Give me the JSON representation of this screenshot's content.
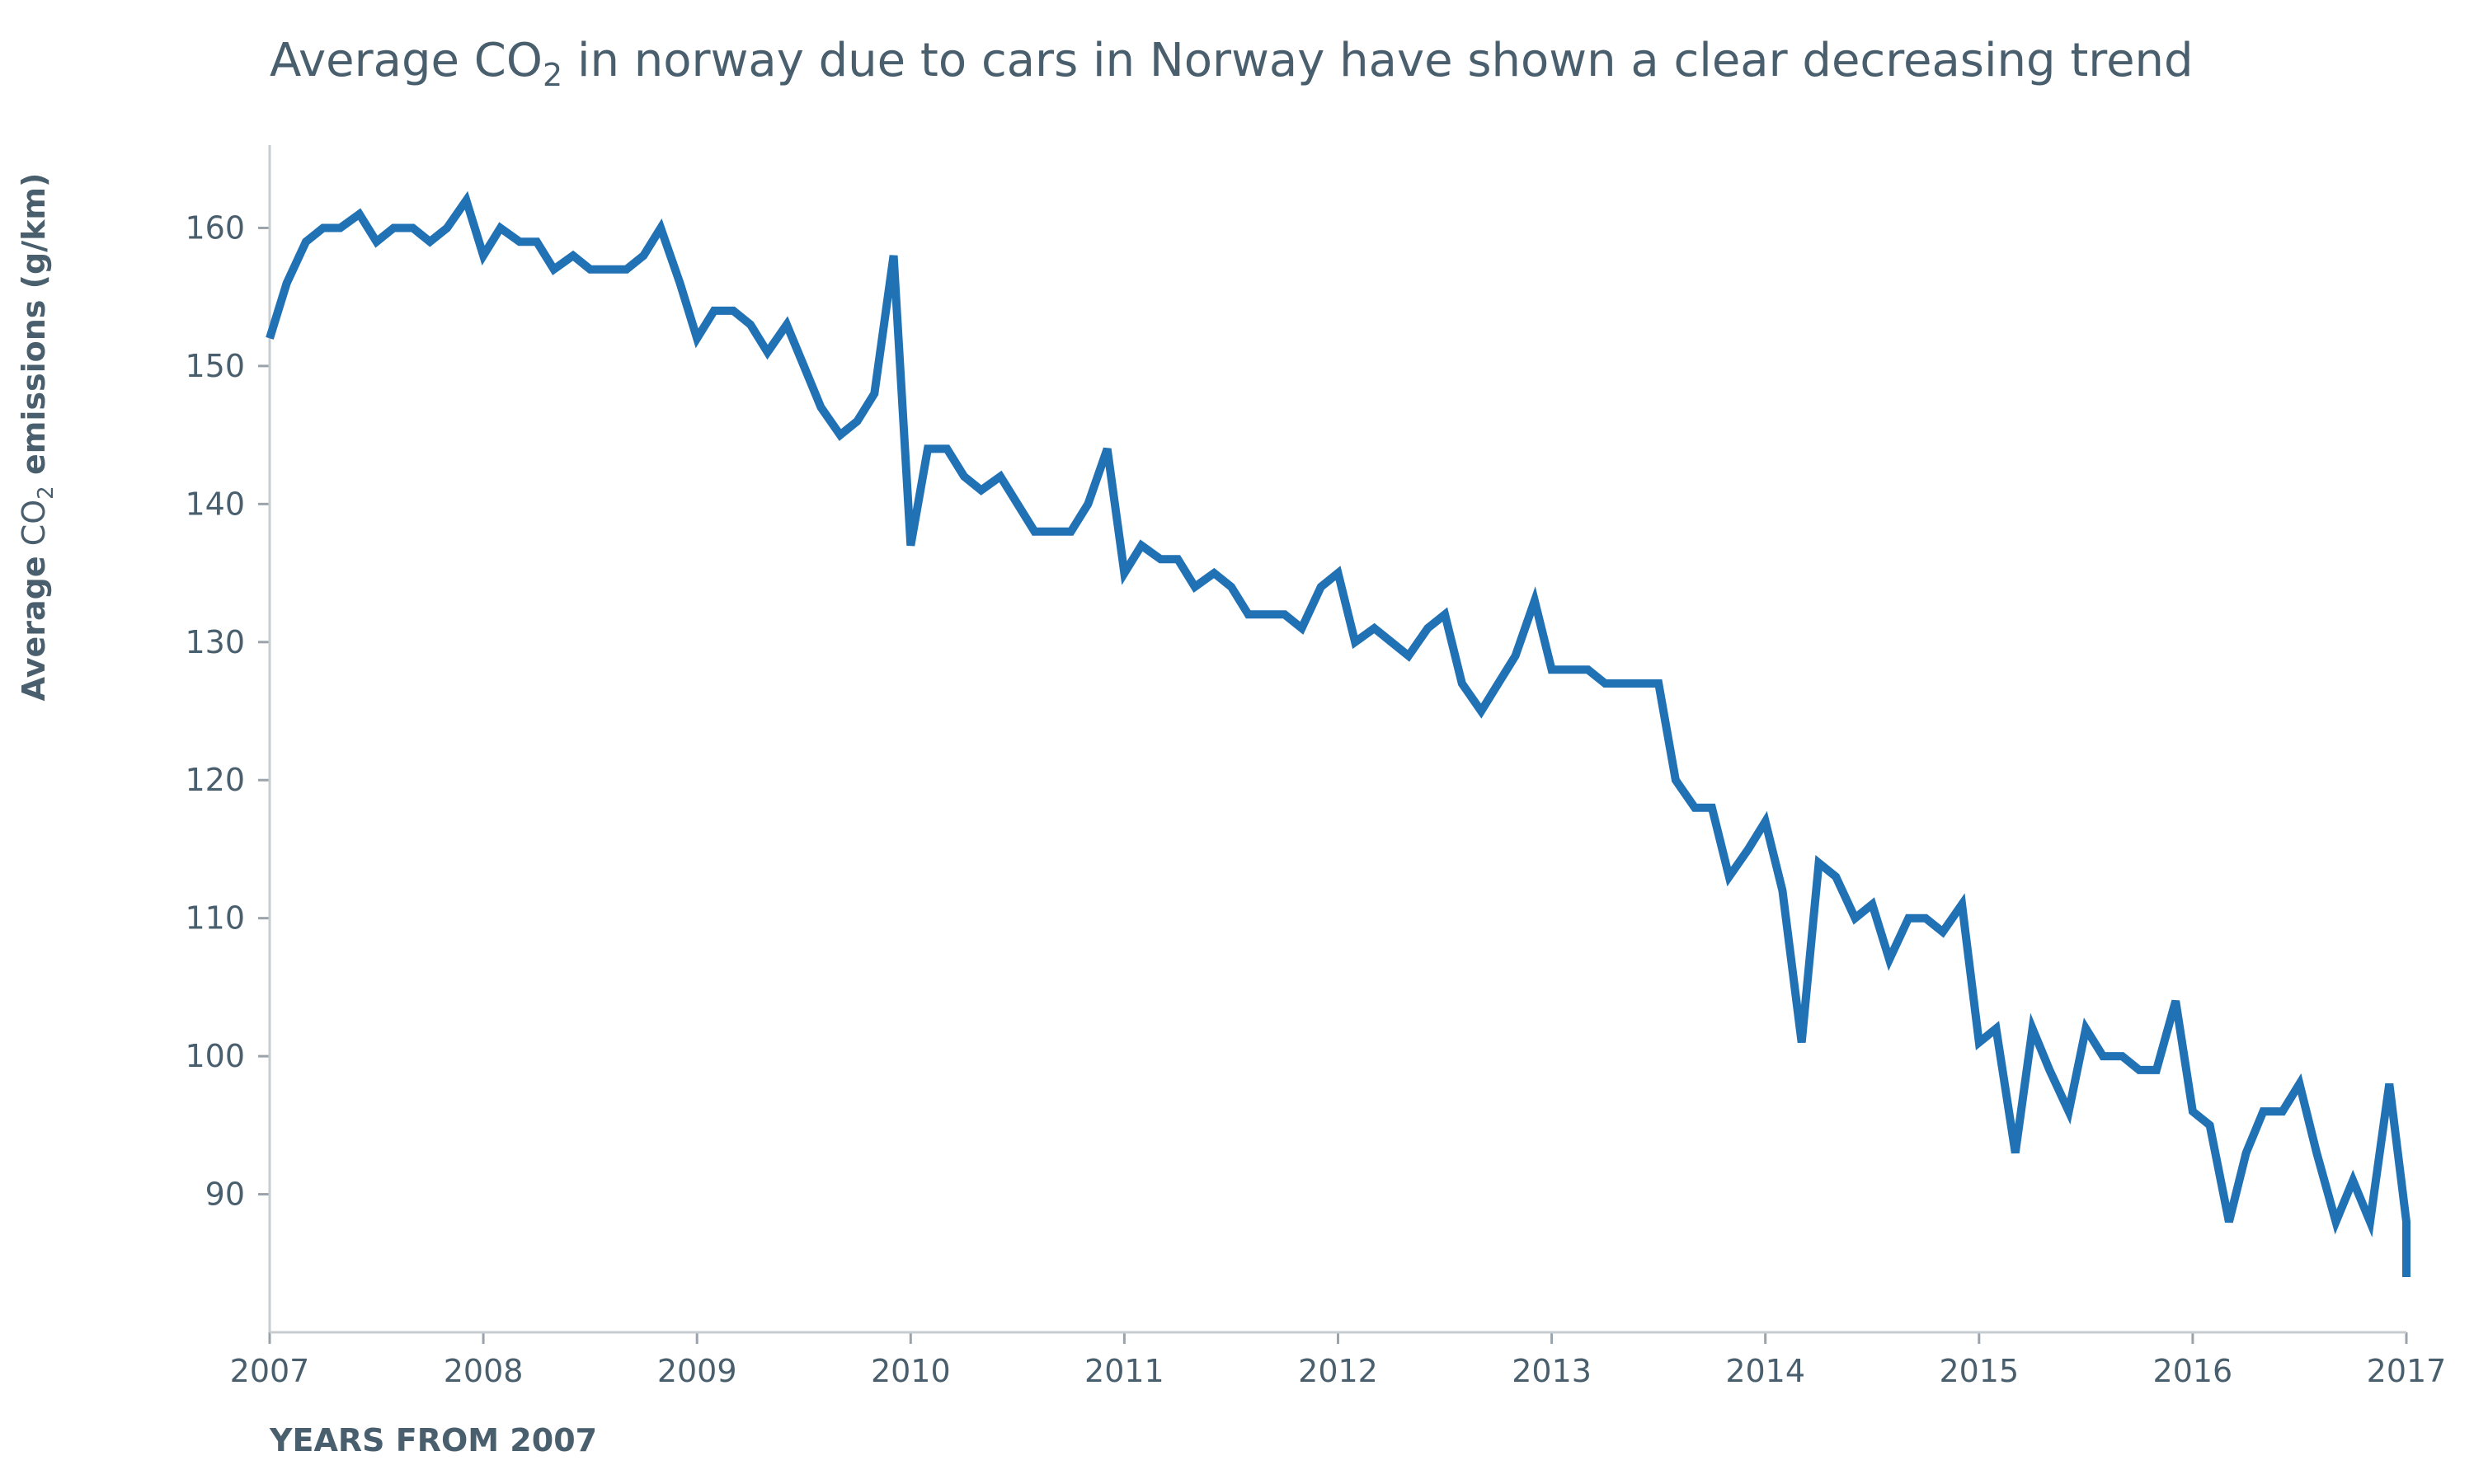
{
  "chart_data": {
    "type": "line",
    "title": {
      "before": "Average CO",
      "sub": "2",
      "after": " in norway due to cars in Norway have shown a clear decreasing trend"
    },
    "xlabel": "YEARS FROM 2007",
    "ylabel": {
      "bold_before": "Average",
      "light": " CO",
      "sub": "2",
      "bold_after": " emissions (g/km)"
    },
    "xlim": [
      2007,
      2017
    ],
    "ylim": [
      80,
      166
    ],
    "x_ticks": [
      2007,
      2008,
      2009,
      2010,
      2011,
      2012,
      2013,
      2014,
      2015,
      2016,
      2017
    ],
    "x_tick_labels": [
      "2007",
      "2008",
      "2009",
      "2010",
      "2011",
      "2012",
      "2013",
      "2014",
      "2015",
      "2016",
      "2017"
    ],
    "y_ticks": [
      90,
      100,
      110,
      120,
      130,
      140,
      150,
      160
    ],
    "y_tick_labels": [
      "90",
      "100",
      "110",
      "120",
      "130",
      "140",
      "150",
      "160"
    ],
    "grid": false,
    "legend": "none",
    "colors": {
      "series": "#2171b5",
      "text": "#4a5f6e",
      "axis": "#c7ccd1"
    },
    "series": [
      {
        "x": [
          2007.0,
          2007.08,
          2007.17,
          2007.25,
          2007.33,
          2007.42,
          2007.5,
          2007.58,
          2007.67,
          2007.75,
          2007.83,
          2007.92,
          2008.0,
          2008.08,
          2008.17,
          2008.25,
          2008.33,
          2008.42,
          2008.5,
          2008.58,
          2008.67,
          2008.75,
          2008.83,
          2008.92,
          2009.0,
          2009.08,
          2009.17,
          2009.25,
          2009.33,
          2009.42,
          2009.5,
          2009.58,
          2009.67,
          2009.75,
          2009.83,
          2009.92,
          2010.0,
          2010.08,
          2010.17,
          2010.25,
          2010.33,
          2010.42,
          2010.5,
          2010.58,
          2010.67,
          2010.75,
          2010.83,
          2010.92,
          2011.0,
          2011.08,
          2011.17,
          2011.25,
          2011.33,
          2011.42,
          2011.5,
          2011.58,
          2011.67,
          2011.75,
          2011.83,
          2011.92,
          2012.0,
          2012.08,
          2012.17,
          2012.25,
          2012.33,
          2012.42,
          2012.5,
          2012.58,
          2012.67,
          2012.75,
          2012.83,
          2012.92,
          2013.0,
          2013.08,
          2013.17,
          2013.25,
          2013.33,
          2013.42,
          2013.5,
          2013.58,
          2013.67,
          2013.75,
          2013.83,
          2013.92,
          2014.0,
          2014.08,
          2014.17,
          2014.25,
          2014.33,
          2014.42,
          2014.5,
          2014.58,
          2014.67,
          2014.75,
          2014.83,
          2014.92,
          2015.0,
          2015.08,
          2015.17,
          2015.25,
          2015.33,
          2015.42,
          2015.5,
          2015.58,
          2015.67,
          2015.75,
          2015.83,
          2015.92,
          2016.0,
          2016.08,
          2016.17,
          2016.25,
          2016.33,
          2016.42,
          2016.5,
          2016.58,
          2016.67,
          2016.75,
          2016.83,
          2016.92,
          2017.0,
          2017.0
        ],
        "values": [
          152,
          156,
          159,
          160,
          160,
          161,
          159,
          160,
          160,
          159,
          160,
          162,
          158,
          160,
          159,
          159,
          157,
          158,
          157,
          157,
          157,
          158,
          160,
          156,
          152,
          154,
          154,
          153,
          151,
          153,
          150,
          147,
          145,
          146,
          148,
          158,
          137,
          144,
          144,
          142,
          141,
          142,
          140,
          138,
          138,
          138,
          140,
          144,
          135,
          137,
          136,
          136,
          134,
          135,
          134,
          132,
          132,
          132,
          131,
          134,
          135,
          130,
          131,
          130,
          129,
          131,
          132,
          127,
          125,
          127,
          129,
          133,
          128,
          128,
          128,
          127,
          127,
          127,
          127,
          120,
          118,
          118,
          113,
          115,
          117,
          112,
          101,
          114,
          113,
          110,
          111,
          107,
          110,
          110,
          109,
          111,
          101,
          102,
          93,
          102,
          99,
          96,
          102,
          100,
          100,
          99,
          99,
          104,
          96,
          95,
          88,
          93,
          96,
          96,
          98,
          93,
          88,
          91,
          88,
          98,
          88,
          84
        ]
      }
    ]
  }
}
